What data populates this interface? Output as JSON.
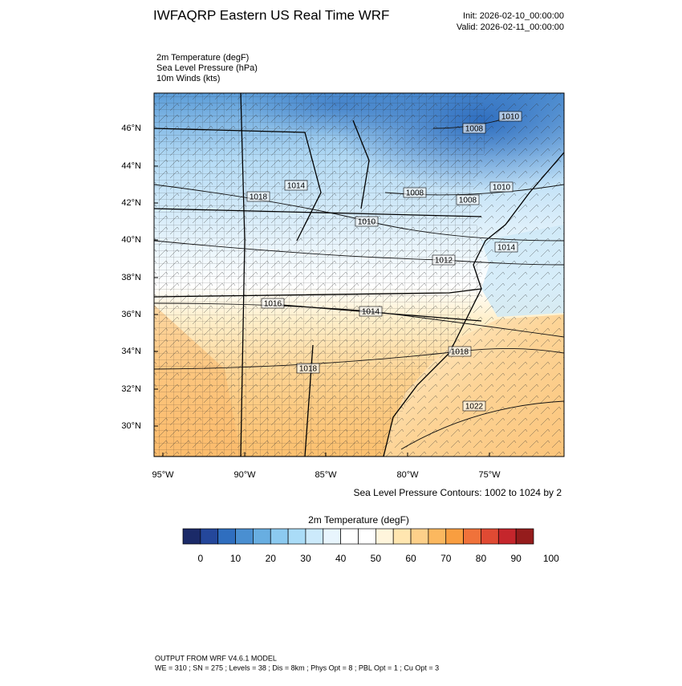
{
  "header": {
    "title": "IWFAQRP Eastern US Real Time WRF",
    "init": "Init: 2026-02-10_00:00:00",
    "valid": "Valid: 2026-02-11_00:00:00"
  },
  "fields": [
    "2m Temperature   (degF)",
    "Sea Level Pressure   (hPa)",
    "10m Winds   (kts)"
  ],
  "map": {
    "lat_labels": [
      "46°N",
      "44°N",
      "42°N",
      "40°N",
      "38°N",
      "36°N",
      "34°N",
      "32°N",
      "30°N"
    ],
    "lon_labels": [
      "95°W",
      "90°W",
      "85°W",
      "80°W",
      "75°W"
    ],
    "contour_labels": [
      "1008",
      "1010",
      "1018",
      "1014",
      "1008",
      "1008",
      "1010",
      "1010",
      "1014",
      "1012",
      "1016",
      "1014",
      "1018",
      "1018",
      "1022"
    ],
    "contour_note": "Sea Level Pressure Contours: 1002 to 1024 by 2"
  },
  "colorbar": {
    "title": "2m Temperature  (degF)",
    "colors": [
      "#1b2a68",
      "#24479b",
      "#2f6ebf",
      "#4a8fd1",
      "#68aee1",
      "#8ccaf0",
      "#aadcf7",
      "#cceafb",
      "#e8f5fd",
      "#ffffff",
      "#ffffff",
      "#fff5dc",
      "#ffe6b0",
      "#fdd08a",
      "#fbb85f",
      "#f99e40",
      "#f0723a",
      "#e04a33",
      "#c5262c",
      "#951c1c"
    ],
    "labels": [
      0,
      10,
      20,
      30,
      40,
      50,
      60,
      70,
      80,
      90,
      100
    ]
  },
  "footer": [
    "OUTPUT FROM WRF V4.6.1 MODEL",
    "WE = 310 ; SN = 275 ; Levels = 38 ; Dis = 8km ; Phys Opt = 8 ; PBL Opt = 1 ; Cu Opt = 3"
  ]
}
